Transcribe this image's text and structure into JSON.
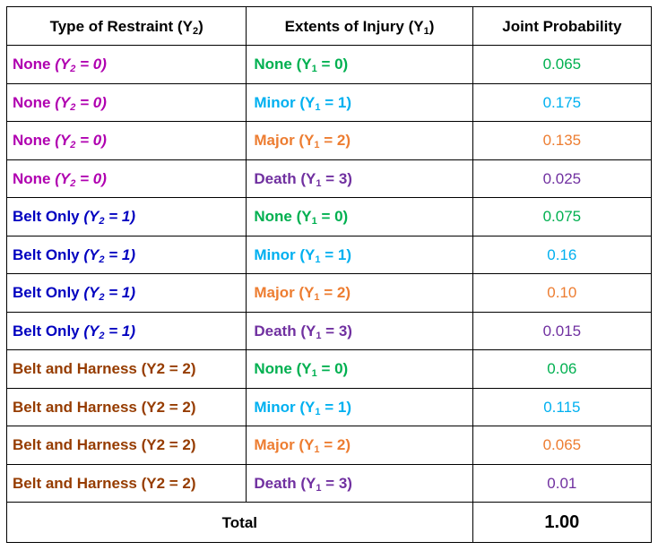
{
  "headers": {
    "col1_prefix": "Type of Restraint (Y",
    "col1_sub": "2",
    "col1_suffix": ")",
    "col2_prefix": "Extents of Injury (Y",
    "col2_sub": "1",
    "col2_suffix": ")",
    "col3": "Joint Probability"
  },
  "colors": {
    "none_restraint": "#b000b0",
    "belt_only": "#0000c0",
    "belt_harness": "#963c00",
    "injury_none": "#00b050",
    "injury_minor": "#00b0f0",
    "injury_major": "#ed7d31",
    "injury_death": "#7030a0"
  },
  "rows": [
    {
      "restraint": {
        "label": "None ",
        "italic_prefix": "(Y",
        "italic_sub": "2",
        "italic_suffix": " = 0)",
        "plain": ""
      },
      "injury": {
        "label": "None (Y",
        "sub": "1",
        "suffix": " = 0)"
      },
      "probability": "0.065"
    },
    {
      "restraint": {
        "label": "None ",
        "italic_prefix": "(Y",
        "italic_sub": "2",
        "italic_suffix": " = 0)",
        "plain": ""
      },
      "injury": {
        "label": "Minor (Y",
        "sub": "1",
        "suffix": " = 1)"
      },
      "probability": "0.175"
    },
    {
      "restraint": {
        "label": "None ",
        "italic_prefix": "(Y",
        "italic_sub": "2",
        "italic_suffix": " = 0)",
        "plain": ""
      },
      "injury": {
        "label": "Major (Y",
        "sub": "1",
        "suffix": " = 2)"
      },
      "probability": "0.135"
    },
    {
      "restraint": {
        "label": "None ",
        "italic_prefix": "(Y",
        "italic_sub": "2",
        "italic_suffix": " = 0)",
        "plain": ""
      },
      "injury": {
        "label": "Death (Y",
        "sub": "1",
        "suffix": " = 3)"
      },
      "probability": "0.025"
    },
    {
      "restraint": {
        "label": "Belt Only ",
        "italic_prefix": "(Y",
        "italic_sub": "2",
        "italic_suffix": " = 1)",
        "plain": ""
      },
      "injury": {
        "label": "None (Y",
        "sub": "1",
        "suffix": " = 0)"
      },
      "probability": "0.075"
    },
    {
      "restraint": {
        "label": "Belt Only ",
        "italic_prefix": "(Y",
        "italic_sub": "2",
        "italic_suffix": " = 1)",
        "plain": ""
      },
      "injury": {
        "label": "Minor (Y",
        "sub": "1",
        "suffix": " = 1)"
      },
      "probability": "0.16"
    },
    {
      "restraint": {
        "label": "Belt Only ",
        "italic_prefix": "(Y",
        "italic_sub": "2",
        "italic_suffix": " = 1)",
        "plain": ""
      },
      "injury": {
        "label": "Major (Y",
        "sub": "1",
        "suffix": " = 2)"
      },
      "probability": "0.10"
    },
    {
      "restraint": {
        "label": "Belt Only ",
        "italic_prefix": "(Y",
        "italic_sub": "2",
        "italic_suffix": " = 1)",
        "plain": ""
      },
      "injury": {
        "label": "Death (Y",
        "sub": "1",
        "suffix": " = 3)"
      },
      "probability": "0.015"
    },
    {
      "restraint": {
        "label": "",
        "italic_prefix": "",
        "italic_sub": "",
        "italic_suffix": "",
        "plain": "Belt and Harness (Y2 = 2)"
      },
      "injury": {
        "label": "None (Y",
        "sub": "1",
        "suffix": " = 0)"
      },
      "probability": "0.06"
    },
    {
      "restraint": {
        "label": "",
        "italic_prefix": "",
        "italic_sub": "",
        "italic_suffix": "",
        "plain": "Belt and Harness (Y2 = 2)"
      },
      "injury": {
        "label": "Minor (Y",
        "sub": "1",
        "suffix": " = 1)"
      },
      "probability": "0.115"
    },
    {
      "restraint": {
        "label": "",
        "italic_prefix": "",
        "italic_sub": "",
        "italic_suffix": "",
        "plain": "Belt and Harness (Y2 = 2)"
      },
      "injury": {
        "label": "Major (Y",
        "sub": "1",
        "suffix": " = 2)"
      },
      "probability": "0.065"
    },
    {
      "restraint": {
        "label": "",
        "italic_prefix": "",
        "italic_sub": "",
        "italic_suffix": "",
        "plain": "Belt and Harness (Y2 = 2)"
      },
      "injury": {
        "label": "Death (Y",
        "sub": "1",
        "suffix": " = 3)"
      },
      "probability": "0.01"
    }
  ],
  "total": {
    "label": "Total",
    "value": "1.00"
  }
}
